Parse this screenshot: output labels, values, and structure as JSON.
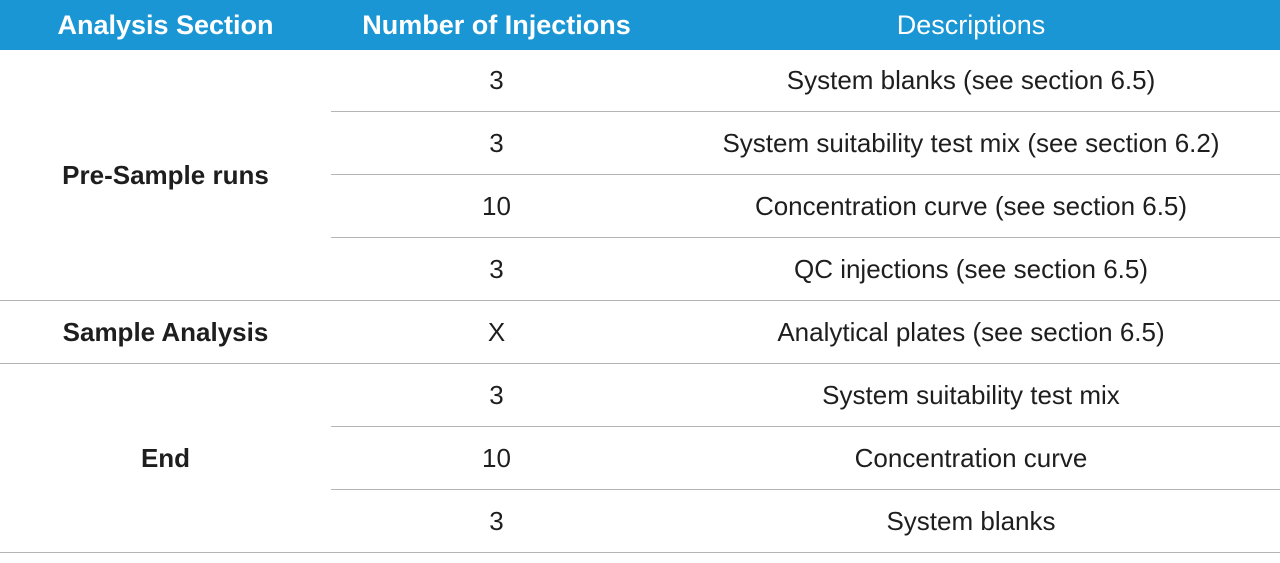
{
  "headers": [
    "Analysis Section",
    "Number of Injections",
    "Descriptions"
  ],
  "sections": [
    {
      "name": "Pre-Sample runs",
      "rows": [
        {
          "injections": "3",
          "description": "System blanks (see section 6.5)"
        },
        {
          "injections": "3",
          "description": "System suitability test mix (see section 6.2)"
        },
        {
          "injections": "10",
          "description": "Concentration curve (see section 6.5)"
        },
        {
          "injections": "3",
          "description": "QC injections (see section 6.5)"
        }
      ]
    },
    {
      "name": "Sample Analysis",
      "rows": [
        {
          "injections": "X",
          "description": "Analytical plates (see section 6.5)"
        }
      ]
    },
    {
      "name": "End",
      "rows": [
        {
          "injections": "3",
          "description": "System suitability test mix"
        },
        {
          "injections": "10",
          "description": "Concentration curve"
        },
        {
          "injections": "3",
          "description": "System blanks"
        }
      ]
    }
  ]
}
